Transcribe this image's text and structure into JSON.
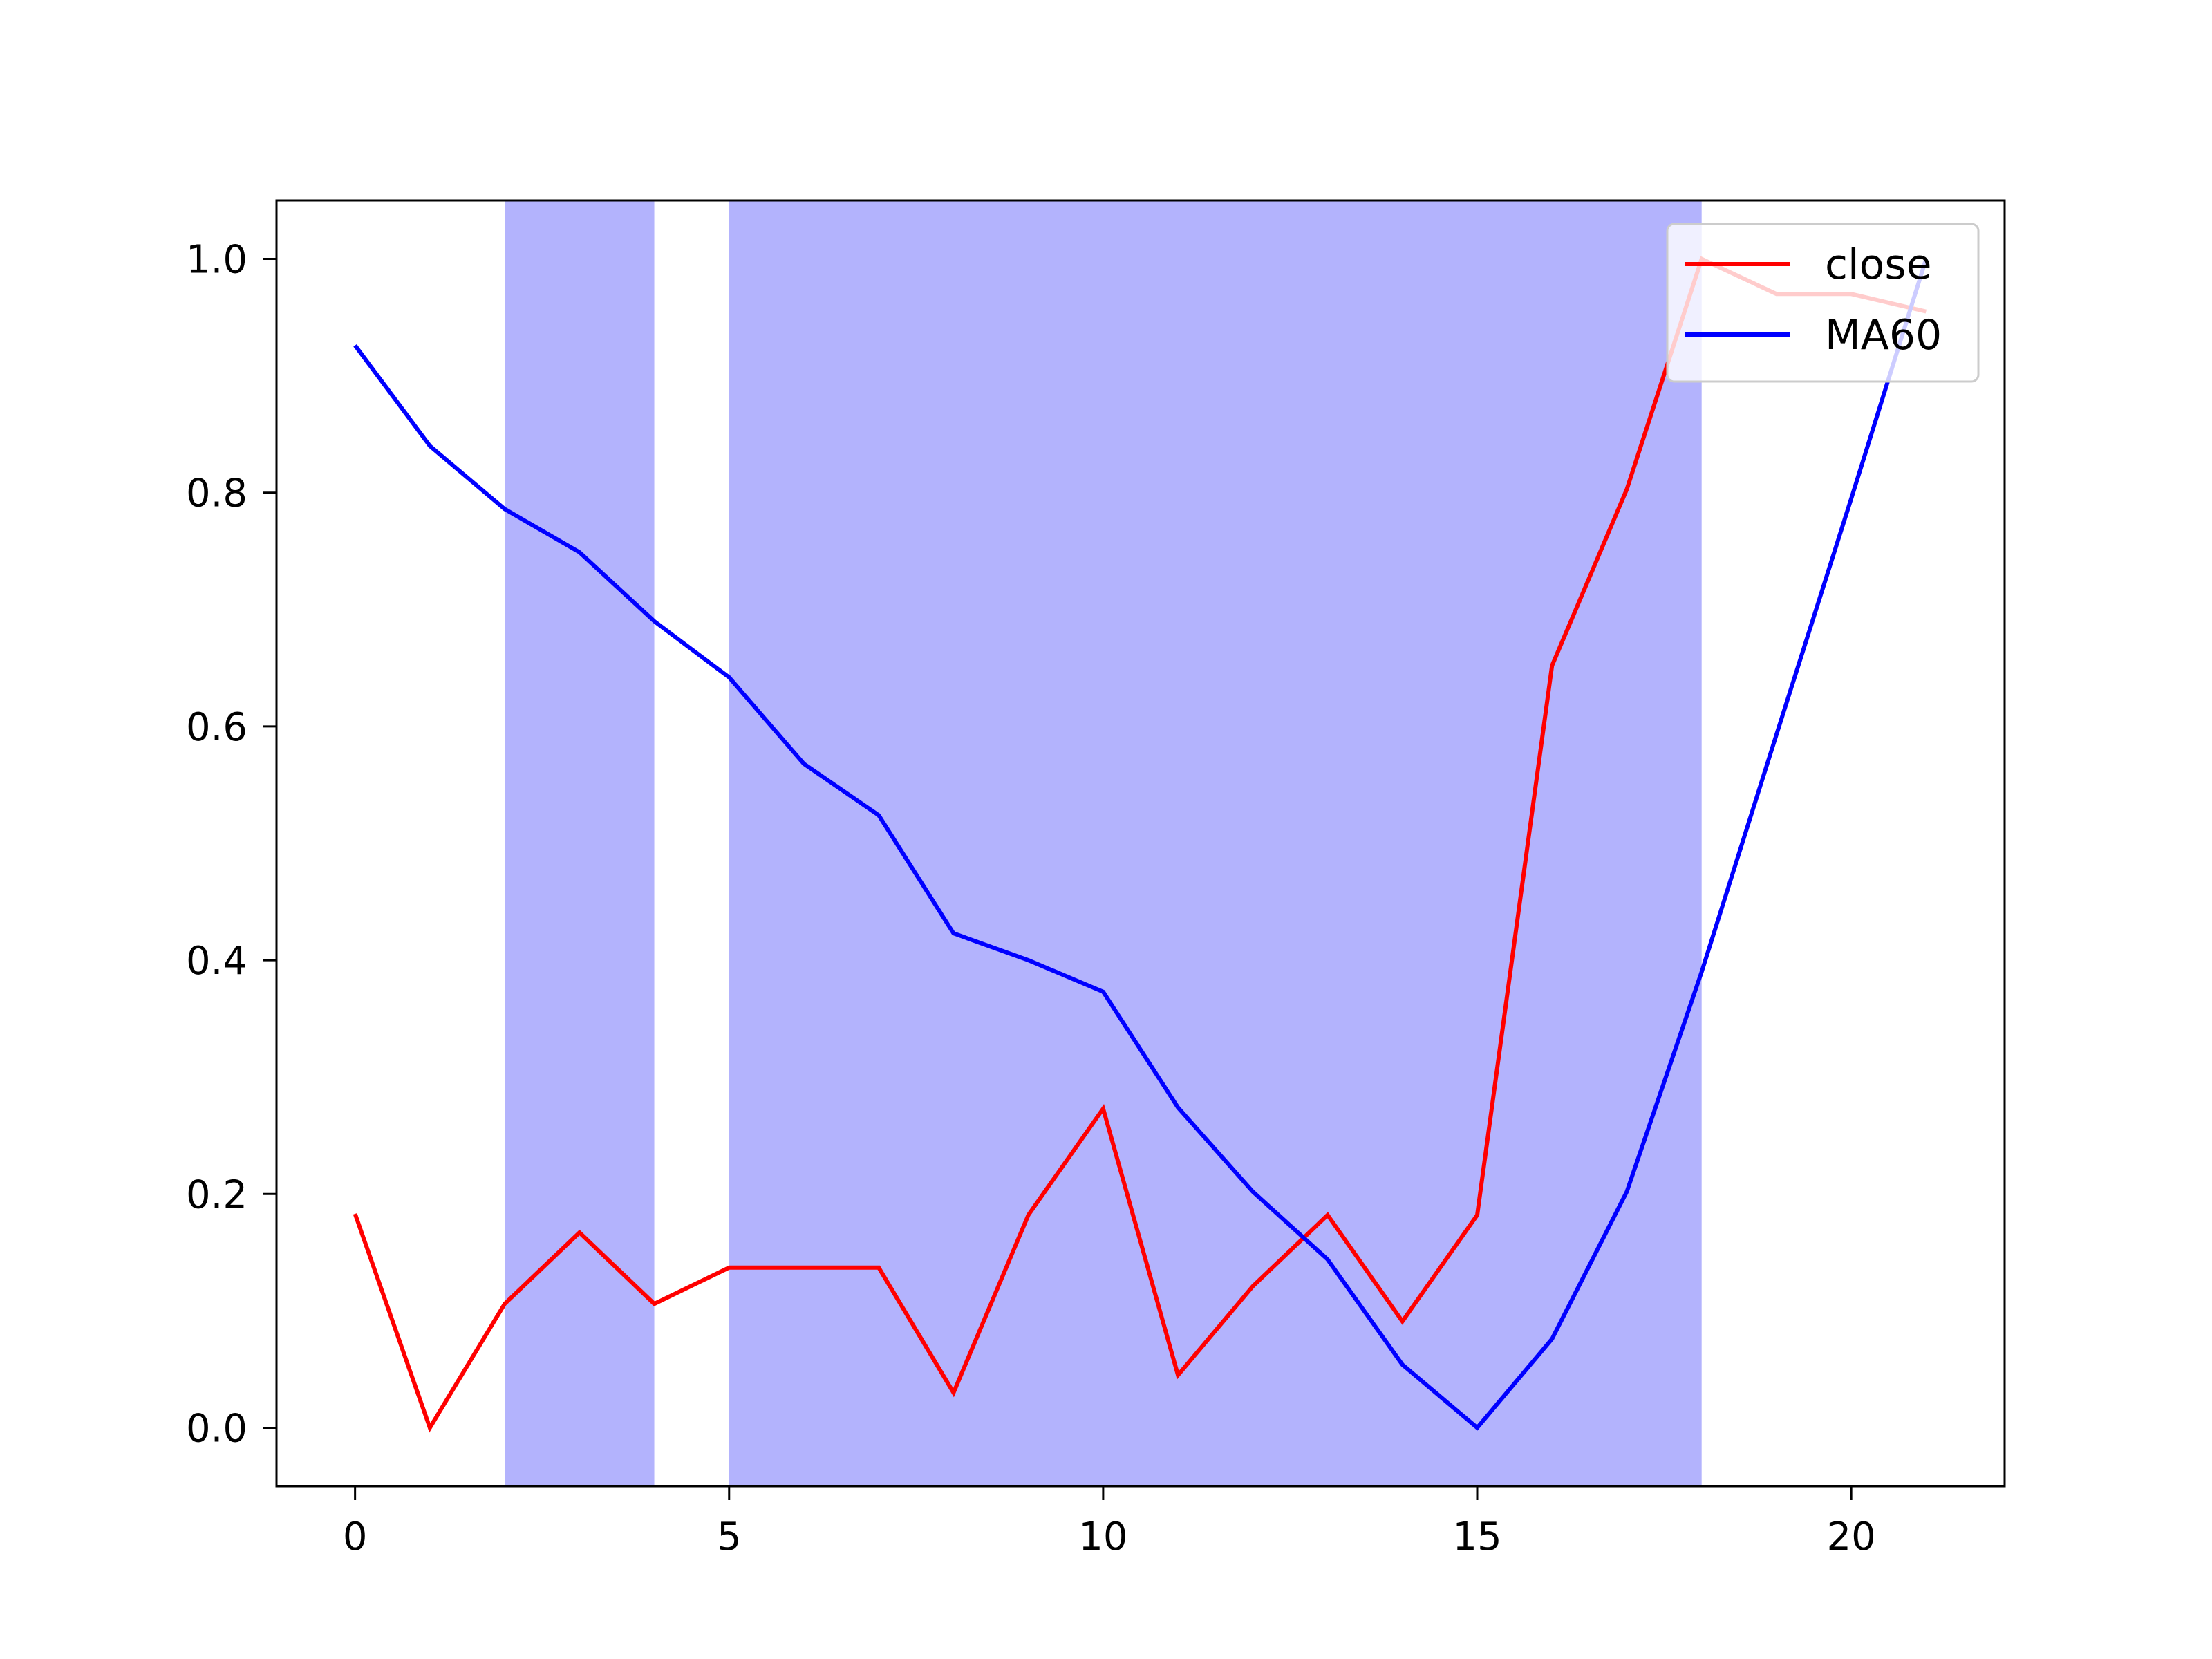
{
  "chart_data": {
    "type": "line",
    "title": "",
    "xlabel": "",
    "ylabel": "",
    "xlim": [
      -1.05,
      22.05
    ],
    "ylim": [
      -0.05,
      1.05
    ],
    "x_ticks": [
      0,
      5,
      10,
      15,
      20
    ],
    "y_ticks": [
      0.0,
      0.2,
      0.4,
      0.6,
      0.8,
      1.0
    ],
    "x_tick_labels": [
      "0",
      "5",
      "10",
      "15",
      "20"
    ],
    "y_tick_labels": [
      "0.0",
      "0.2",
      "0.4",
      "0.6",
      "0.8",
      "1.0"
    ],
    "grid": false,
    "legend_position": "upper right",
    "shaded_regions": [
      {
        "x_start": 2,
        "x_end": 4,
        "color": "#b3b3fd"
      },
      {
        "x_start": 5,
        "x_end": 18,
        "color": "#b3b3fd"
      }
    ],
    "x": [
      0,
      1,
      2,
      3,
      4,
      5,
      6,
      7,
      8,
      9,
      10,
      11,
      12,
      13,
      14,
      15,
      16,
      17,
      18,
      19,
      20,
      21
    ],
    "series": [
      {
        "name": "close",
        "color": "#ff0000",
        "values": [
          0.183,
          0.0,
          0.106,
          0.167,
          0.106,
          0.137,
          0.137,
          0.137,
          0.03,
          0.182,
          0.273,
          0.045,
          0.121,
          0.182,
          0.091,
          0.182,
          0.652,
          0.803,
          1.0,
          0.97,
          0.97,
          0.955
        ]
      },
      {
        "name": "MA60",
        "color": "#0000ff",
        "values": [
          0.926,
          0.84,
          0.786,
          0.749,
          0.69,
          0.642,
          0.568,
          0.524,
          0.423,
          0.4,
          0.373,
          0.274,
          0.202,
          0.144,
          0.054,
          0.0,
          0.076,
          0.202,
          0.39,
          0.593,
          0.795,
          1.0
        ]
      }
    ]
  }
}
